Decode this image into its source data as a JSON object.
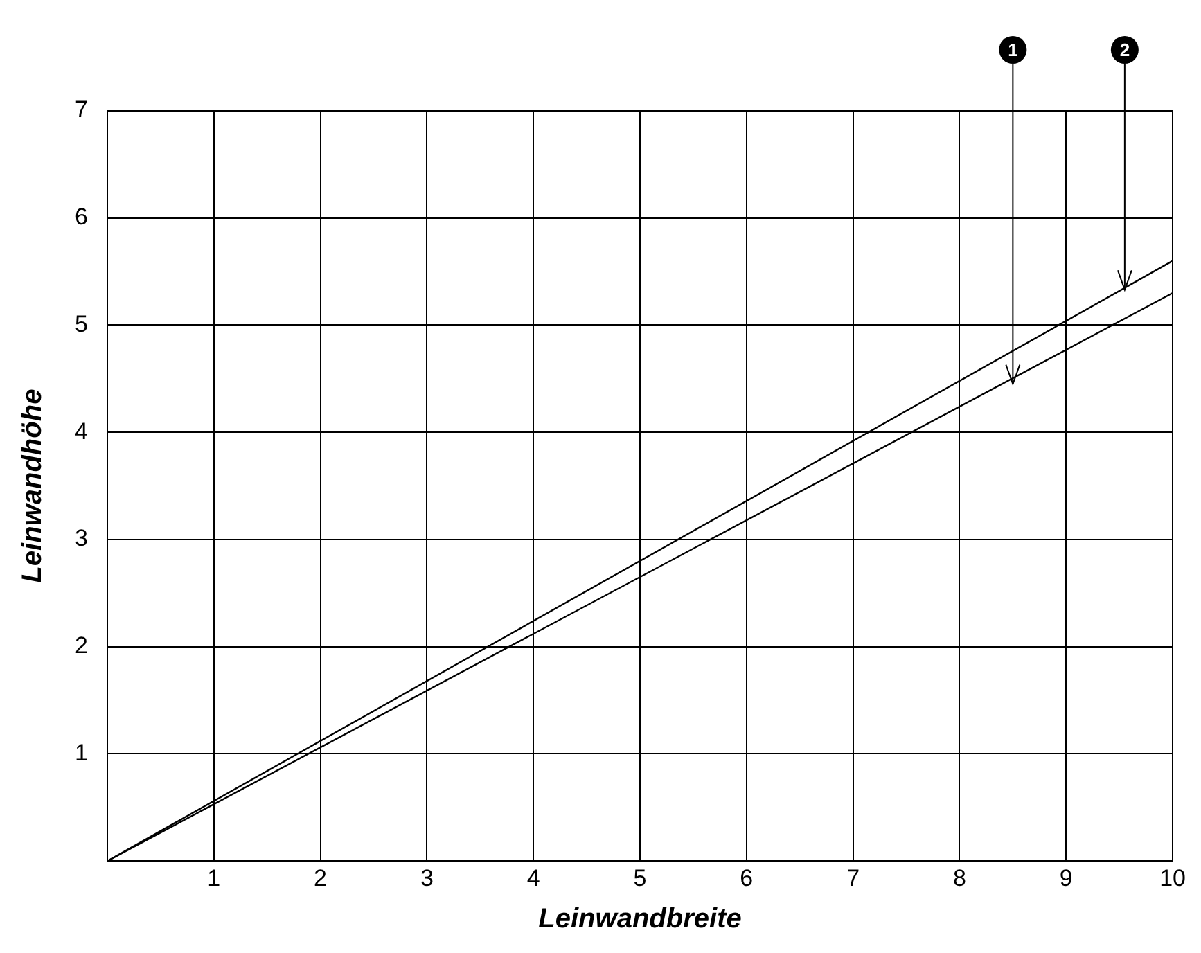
{
  "chart_data": {
    "type": "line",
    "xlabel": "Leinwandbreite",
    "ylabel": "Leinwandhöhe",
    "x": [
      0,
      10
    ],
    "series": [
      {
        "color": "#000000",
        "values": [
          0,
          5.3
        ]
      },
      {
        "color": "#000000",
        "values": [
          0,
          5.6
        ]
      }
    ],
    "annotations": [
      {
        "text": "1",
        "x": 8.5,
        "y": 4.45
      },
      {
        "text": "2",
        "x": 9.55,
        "y": 5.33
      }
    ],
    "xlim": [
      0,
      10
    ],
    "xticks": [
      {
        "value": 0,
        "label": null
      },
      1,
      2,
      3,
      4,
      5,
      6,
      7,
      8,
      9,
      10
    ],
    "ylim": [
      0,
      7
    ],
    "yticks": [
      {
        "value": 0,
        "label": null
      },
      1,
      2,
      3,
      4,
      5,
      6,
      7
    ],
    "grid": true,
    "legend": false,
    "marker": "none",
    "line_style": "solid"
  }
}
